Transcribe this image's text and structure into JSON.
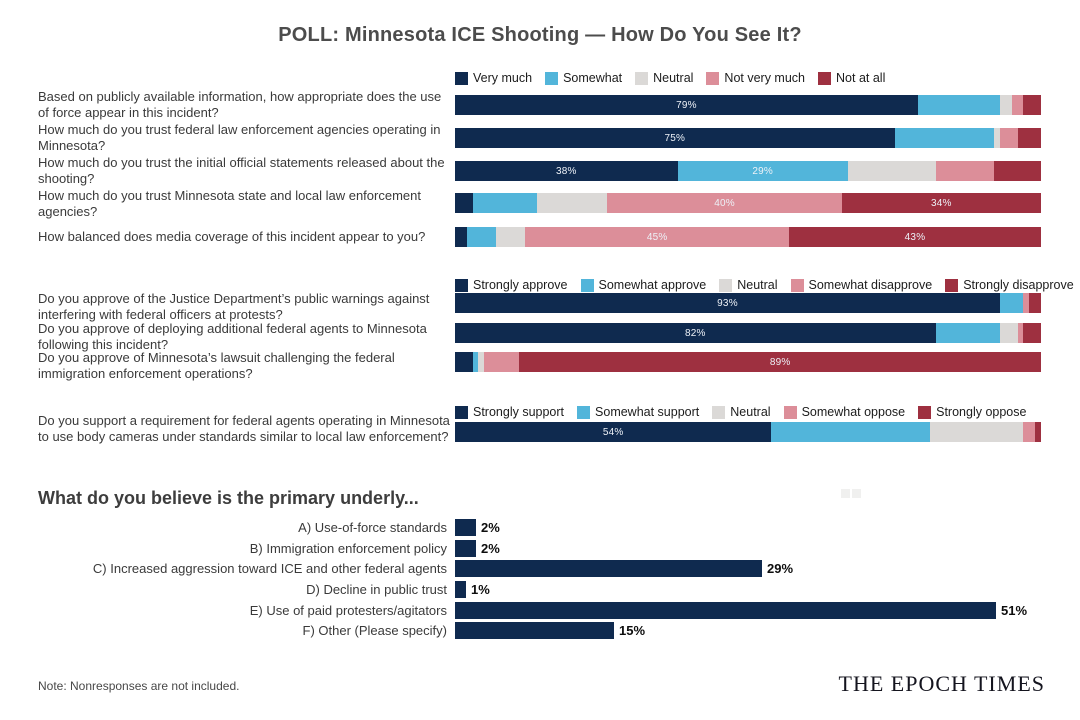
{
  "title": "POLL: Minnesota ICE Shooting — How Do You See It?",
  "note": "Note: Nonresponses are not included.",
  "logo": "THE EPOCH TIMES",
  "colors": {
    "navy": "#0f2a4f",
    "blue": "#52b5da",
    "gray": "#dbd9d7",
    "pink": "#dc8e99",
    "red": "#9e3040"
  },
  "chart_data": [
    {
      "type": "stacked-bar",
      "legend": [
        "Very much",
        "Somewhat",
        "Neutral",
        "Not very much",
        "Not at all"
      ],
      "rows": [
        {
          "question": "Based on publicly available information, how appropriate does the use of force appear in this incident?",
          "values": [
            79,
            14,
            2,
            2,
            3
          ],
          "labels": [
            "79%",
            "",
            "",
            "",
            ""
          ]
        },
        {
          "question": "How much do you trust federal law enforcement agencies operating in Minnesota?",
          "values": [
            75,
            17,
            1,
            3,
            4
          ],
          "labels": [
            "75%",
            "",
            "",
            "",
            ""
          ]
        },
        {
          "question": "How much do you trust the initial official statements released about the shooting?",
          "values": [
            38,
            29,
            15,
            10,
            8
          ],
          "labels": [
            "38%",
            "29%",
            "",
            "",
            ""
          ]
        },
        {
          "question": "How much do you trust Minnesota state and local law enforcement agencies?",
          "values": [
            3,
            11,
            12,
            40,
            34
          ],
          "labels": [
            "",
            "",
            "",
            "40%",
            "34%"
          ]
        },
        {
          "question": "How balanced does media coverage of this incident appear to you?",
          "values": [
            2,
            5,
            5,
            45,
            43
          ],
          "labels": [
            "",
            "",
            "",
            "45%",
            "43%"
          ]
        }
      ]
    },
    {
      "type": "stacked-bar",
      "legend": [
        "Strongly approve",
        "Somewhat approve",
        "Neutral",
        "Somewhat disapprove",
        "Strongly disapprove"
      ],
      "rows": [
        {
          "question": "Do you approve of the Justice Department’s public warnings against interfering with federal officers at protests?",
          "values": [
            93,
            4,
            0,
            1,
            2
          ],
          "labels": [
            "93%",
            "",
            "",
            "",
            ""
          ]
        },
        {
          "question": "Do you approve of deploying additional federal agents to Minnesota following this incident?",
          "values": [
            82,
            11,
            3,
            1,
            3
          ],
          "labels": [
            "82%",
            "",
            "",
            "",
            ""
          ]
        },
        {
          "question": "Do you approve of Minnesota’s lawsuit challenging the federal immigration enforcement operations?",
          "values": [
            3,
            1,
            1,
            6,
            89
          ],
          "labels": [
            "",
            "",
            "",
            "",
            "89%"
          ]
        }
      ]
    },
    {
      "type": "stacked-bar",
      "legend": [
        "Strongly support",
        "Somewhat support",
        "Neutral",
        "Somewhat oppose",
        "Strongly oppose"
      ],
      "rows": [
        {
          "question": "Do you support a requirement for federal agents operating in Minnesota to use body cameras under standards similar to local law enforcement?",
          "values": [
            54,
            27,
            16,
            2,
            1
          ],
          "labels": [
            "54%",
            "",
            "",
            "",
            ""
          ]
        }
      ]
    },
    {
      "type": "bar",
      "title": "What do you believe is the primary underly...",
      "categories": [
        "A) Use-of-force standards",
        "B) Immigration enforcement policy",
        "C) Increased aggression toward ICE and other federal agents",
        "D) Decline in public trust",
        "E) Use of paid protesters/agitators",
        "F) Other (Please specify)"
      ],
      "values": [
        2,
        2,
        29,
        1,
        51,
        15
      ],
      "value_labels": [
        "2%",
        "2%",
        "29%",
        "1%",
        "51%",
        "15%"
      ]
    }
  ]
}
